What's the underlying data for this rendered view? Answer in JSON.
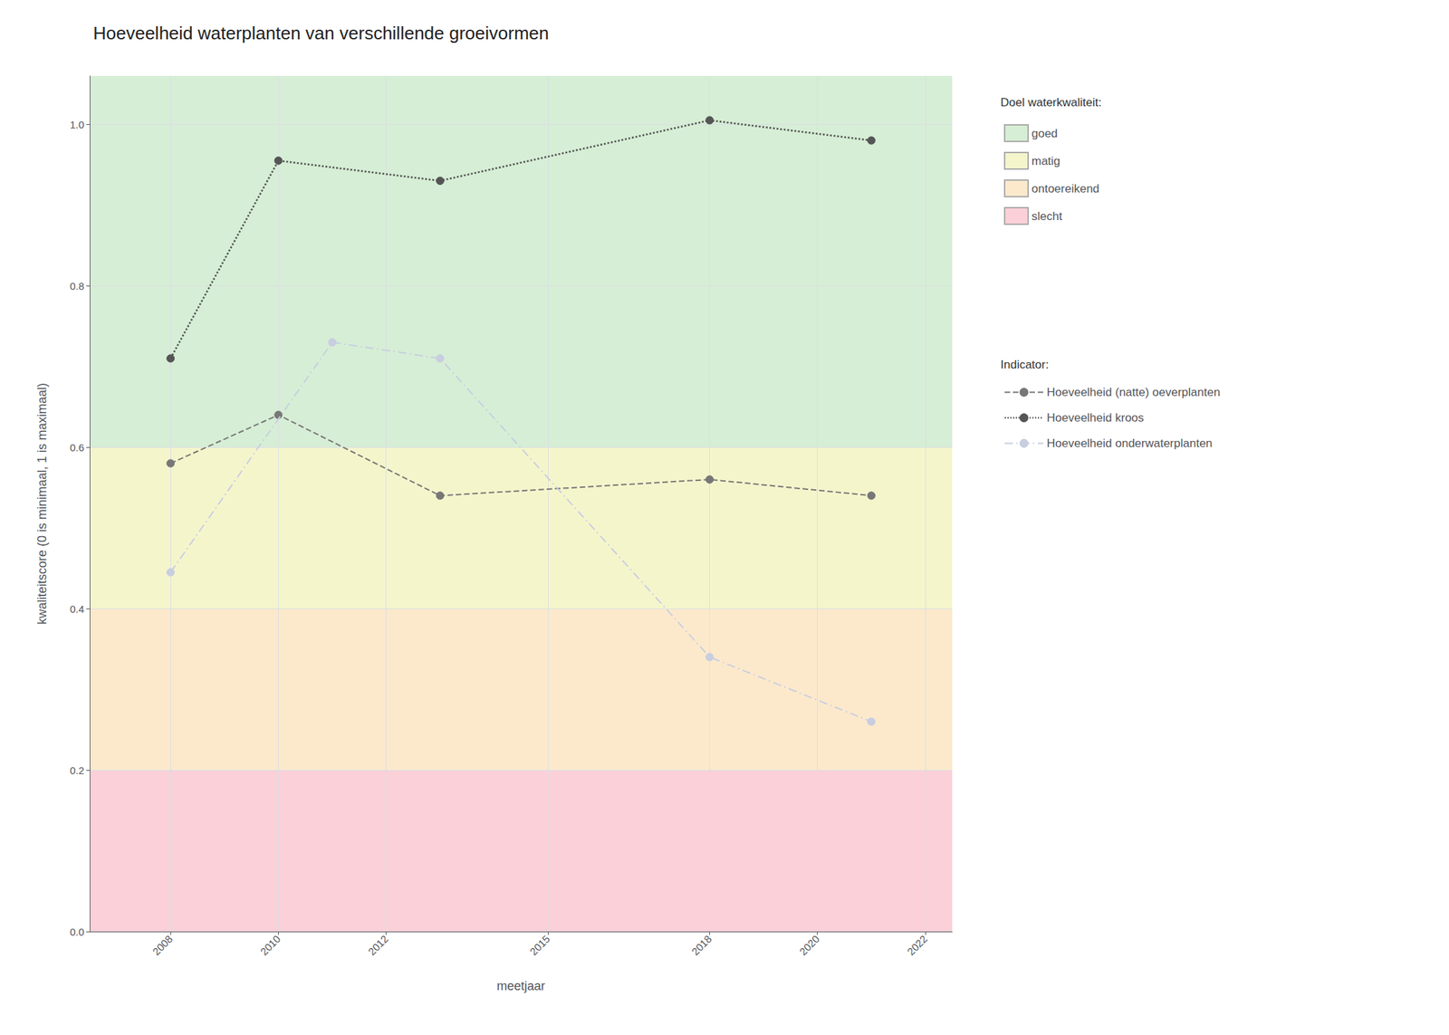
{
  "chart_data": {
    "type": "line",
    "title": "Hoeveelheid waterplanten van verschillende groeivormen",
    "x_label": "meetjaar",
    "y_label": "kwaliteitscore (0 is minimaal, 1 is maximaal)",
    "xlim": [
      2006.5,
      2022.5
    ],
    "ylim": [
      0.0,
      1.06
    ],
    "xticks": [
      2008,
      2010,
      2012,
      2015,
      2018,
      2020,
      2022
    ],
    "yticks": [
      {
        "value": 0.0,
        "label": "0.0"
      },
      0.2,
      0.4,
      0.6,
      0.8,
      {
        "value": 1.0,
        "label": "1.0"
      }
    ],
    "grid": true,
    "zones": {
      "title": "Doel waterkwaliteit:",
      "items": [
        {
          "label": "goed",
          "ymin": 0.6,
          "ymax": 1.06,
          "color": "#d6eed5"
        },
        {
          "label": "matig",
          "ymin": 0.4,
          "ymax": 0.6,
          "color": "#f5f5cc"
        },
        {
          "label": "ontoereikend",
          "ymin": 0.2,
          "ymax": 0.4,
          "color": "#fce9cc"
        },
        {
          "label": "slecht",
          "ymin": 0.0,
          "ymax": 0.2,
          "color": "#fcd0d8"
        }
      ]
    },
    "legend_title": "Indicator:",
    "series": [
      {
        "name": "Hoeveelheid (natte) oeverplanten",
        "x": [
          2008,
          2010,
          2013,
          2018,
          2021
        ],
        "values": [
          0.58,
          0.64,
          0.54,
          0.56,
          0.54
        ],
        "color": "#777777",
        "line_style": "dashed",
        "marker": "circle"
      },
      {
        "name": "Hoeveelheid kroos",
        "x": [
          2008,
          2010,
          2013,
          2018,
          2021
        ],
        "values": [
          0.71,
          0.955,
          0.93,
          1.005,
          0.98
        ],
        "color": "#555555",
        "line_style": "dotted",
        "marker": "circle"
      },
      {
        "name": "Hoeveelheid onderwaterplanten",
        "x": [
          2008,
          2011,
          2013,
          2018,
          2021
        ],
        "values": [
          0.445,
          0.73,
          0.71,
          0.34,
          0.26
        ],
        "color": "#c8cee0",
        "line_style": "dashdot",
        "marker": "circle"
      }
    ]
  }
}
